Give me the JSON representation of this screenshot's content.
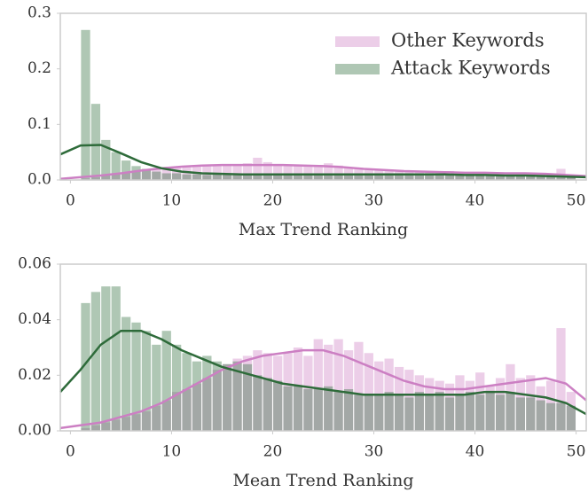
{
  "chart_data": [
    {
      "type": "histogram",
      "xlabel": "Max Trend Ranking",
      "legend": "upper right",
      "bins": [
        1,
        2,
        3,
        4,
        5,
        6,
        7,
        8,
        9,
        10,
        11,
        12,
        13,
        14,
        15,
        16,
        17,
        18,
        19,
        20,
        21,
        22,
        23,
        24,
        25,
        26,
        27,
        28,
        29,
        30,
        31,
        32,
        33,
        34,
        35,
        36,
        37,
        38,
        39,
        40,
        41,
        42,
        43,
        44,
        45,
        46,
        47,
        48,
        49,
        50
      ],
      "kde_x": [
        -1,
        1,
        3,
        5,
        7,
        9,
        11,
        13,
        15,
        17,
        19,
        21,
        23,
        25,
        27,
        29,
        31,
        33,
        35,
        37,
        39,
        41,
        43,
        45,
        47,
        49,
        51
      ],
      "xlim": [
        -1,
        51
      ],
      "xticks": [
        0,
        10,
        20,
        30,
        40,
        50
      ],
      "ylim": [
        0,
        0.3
      ],
      "yticks": [
        {
          "value": 0,
          "label": "0.0"
        },
        0.1,
        0.2,
        0.3
      ],
      "series": [
        {
          "name": "Other Keywords",
          "color": "#cc7fc3",
          "values": [
            0.003,
            0.005,
            0.008,
            0.01,
            0.013,
            0.016,
            0.019,
            0.021,
            0.023,
            0.024,
            0.025,
            0.026,
            0.027,
            0.026,
            0.028,
            0.027,
            0.03,
            0.04,
            0.032,
            0.028,
            0.027,
            0.026,
            0.025,
            0.027,
            0.03,
            0.026,
            0.021,
            0.019,
            0.018,
            0.017,
            0.016,
            0.015,
            0.016,
            0.014,
            0.015,
            0.013,
            0.016,
            0.014,
            0.012,
            0.013,
            0.012,
            0.012,
            0.011,
            0.012,
            0.011,
            0.012,
            0.01,
            0.02,
            0.008
          ],
          "kde": [
            0.002,
            0.005,
            0.008,
            0.012,
            0.017,
            0.021,
            0.024,
            0.026,
            0.027,
            0.027,
            0.027,
            0.027,
            0.026,
            0.025,
            0.023,
            0.02,
            0.018,
            0.016,
            0.015,
            0.014,
            0.013,
            0.013,
            0.012,
            0.012,
            0.011,
            0.009,
            0.007
          ]
        },
        {
          "name": "Attack Keywords",
          "color": "#2e6b3a",
          "values": [
            0.27,
            0.137,
            0.072,
            0.05,
            0.035,
            0.025,
            0.02,
            0.015,
            0.012,
            0.012,
            0.01,
            0.01,
            0.009,
            0.01,
            0.01,
            0.009,
            0.01,
            0.01,
            0.009,
            0.01,
            0.009,
            0.01,
            0.009,
            0.01,
            0.009,
            0.01,
            0.009,
            0.01,
            0.009,
            0.01,
            0.009,
            0.01,
            0.009,
            0.01,
            0.009,
            0.01,
            0.009,
            0.008,
            0.009,
            0.008,
            0.008,
            0.008,
            0.007,
            0.008,
            0.007,
            0.006,
            0.007,
            0.006,
            0.005
          ],
          "kde": [
            0.046,
            0.062,
            0.063,
            0.048,
            0.032,
            0.021,
            0.015,
            0.012,
            0.011,
            0.01,
            0.01,
            0.01,
            0.01,
            0.01,
            0.01,
            0.01,
            0.01,
            0.01,
            0.01,
            0.01,
            0.009,
            0.009,
            0.008,
            0.008,
            0.007,
            0.006,
            0.005
          ]
        }
      ]
    },
    {
      "type": "histogram",
      "xlabel": "Mean Trend Ranking",
      "bins": [
        1,
        2,
        3,
        4,
        5,
        6,
        7,
        8,
        9,
        10,
        11,
        12,
        13,
        14,
        15,
        16,
        17,
        18,
        19,
        20,
        21,
        22,
        23,
        24,
        25,
        26,
        27,
        28,
        29,
        30,
        31,
        32,
        33,
        34,
        35,
        36,
        37,
        38,
        39,
        40,
        41,
        42,
        43,
        44,
        45,
        46,
        47,
        48,
        49,
        50
      ],
      "kde_x": [
        -1,
        1,
        3,
        5,
        7,
        9,
        11,
        13,
        15,
        17,
        19,
        21,
        23,
        25,
        27,
        29,
        31,
        33,
        35,
        37,
        39,
        41,
        43,
        45,
        47,
        49,
        51
      ],
      "xlim": [
        -1,
        51
      ],
      "xticks": [
        0,
        10,
        20,
        30,
        40,
        50
      ],
      "ylim": [
        0,
        0.06
      ],
      "yticks": [
        {
          "value": 0,
          "label": "0.00"
        },
        {
          "value": 0.02,
          "label": "0.02"
        },
        {
          "value": 0.04,
          "label": "0.04"
        },
        {
          "value": 0.06,
          "label": "0.06"
        }
      ],
      "series": [
        {
          "color": "#cc7fc3",
          "values": [
            0.001,
            0.002,
            0.003,
            0.004,
            0.005,
            0.006,
            0.007,
            0.009,
            0.011,
            0.014,
            0.015,
            0.017,
            0.019,
            0.022,
            0.024,
            0.026,
            0.027,
            0.029,
            0.028,
            0.027,
            0.028,
            0.03,
            0.027,
            0.033,
            0.031,
            0.033,
            0.029,
            0.032,
            0.028,
            0.025,
            0.026,
            0.023,
            0.022,
            0.02,
            0.019,
            0.018,
            0.017,
            0.02,
            0.018,
            0.021,
            0.016,
            0.019,
            0.024,
            0.019,
            0.02,
            0.016,
            0.018,
            0.037,
            0.014
          ],
          "kde": [
            0.001,
            0.002,
            0.003,
            0.005,
            0.007,
            0.01,
            0.014,
            0.018,
            0.022,
            0.025,
            0.027,
            0.028,
            0.029,
            0.029,
            0.027,
            0.024,
            0.021,
            0.018,
            0.016,
            0.015,
            0.015,
            0.016,
            0.017,
            0.018,
            0.019,
            0.017,
            0.011
          ]
        },
        {
          "color": "#2e6b3a",
          "values": [
            0.046,
            0.05,
            0.052,
            0.052,
            0.041,
            0.039,
            0.036,
            0.031,
            0.036,
            0.031,
            0.028,
            0.025,
            0.027,
            0.025,
            0.024,
            0.025,
            0.024,
            0.02,
            0.019,
            0.018,
            0.016,
            0.016,
            0.015,
            0.015,
            0.016,
            0.014,
            0.015,
            0.013,
            0.013,
            0.013,
            0.014,
            0.013,
            0.012,
            0.014,
            0.013,
            0.014,
            0.012,
            0.013,
            0.014,
            0.013,
            0.014,
            0.013,
            0.014,
            0.012,
            0.012,
            0.011,
            0.01,
            0.01,
            0.009
          ],
          "kde": [
            0.014,
            0.022,
            0.031,
            0.036,
            0.036,
            0.033,
            0.029,
            0.026,
            0.023,
            0.021,
            0.019,
            0.017,
            0.016,
            0.015,
            0.014,
            0.013,
            0.013,
            0.013,
            0.013,
            0.013,
            0.013,
            0.014,
            0.014,
            0.013,
            0.012,
            0.01,
            0.006
          ]
        }
      ]
    }
  ]
}
